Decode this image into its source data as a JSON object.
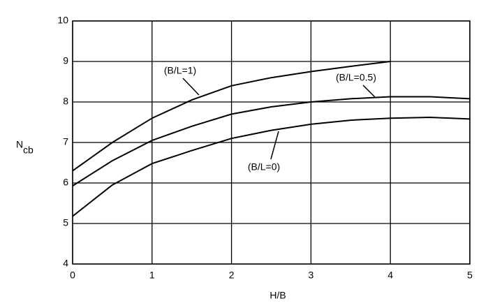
{
  "chart_data": {
    "type": "line",
    "x_label": "H/B",
    "y_label": "N",
    "y_label_subscript": "cb",
    "x": [
      0,
      0.5,
      1,
      1.5,
      2,
      2.5,
      3,
      3.5,
      4,
      4.5,
      5
    ],
    "series": [
      {
        "name": "(B/L=1)",
        "color": "#000000",
        "values": [
          6.3,
          7.0,
          7.6,
          8.05,
          8.4,
          8.6,
          8.75,
          8.88,
          9.0,
          null,
          null
        ]
      },
      {
        "name": "(B/L=0.5)",
        "color": "#000000",
        "values": [
          5.93,
          6.55,
          7.05,
          7.4,
          7.7,
          7.88,
          8.0,
          8.08,
          8.13,
          8.13,
          8.08
        ]
      },
      {
        "name": "(B/L=0)",
        "color": "#000000",
        "values": [
          5.18,
          5.95,
          6.48,
          6.8,
          7.1,
          7.3,
          7.45,
          7.55,
          7.6,
          7.62,
          7.58
        ]
      }
    ],
    "xlim": [
      0,
      5
    ],
    "xticks": [
      0,
      1,
      2,
      3,
      4,
      5
    ],
    "ylim": [
      4,
      10
    ],
    "yticks": [
      4,
      5,
      6,
      7,
      8,
      9,
      10
    ],
    "grid": true
  }
}
